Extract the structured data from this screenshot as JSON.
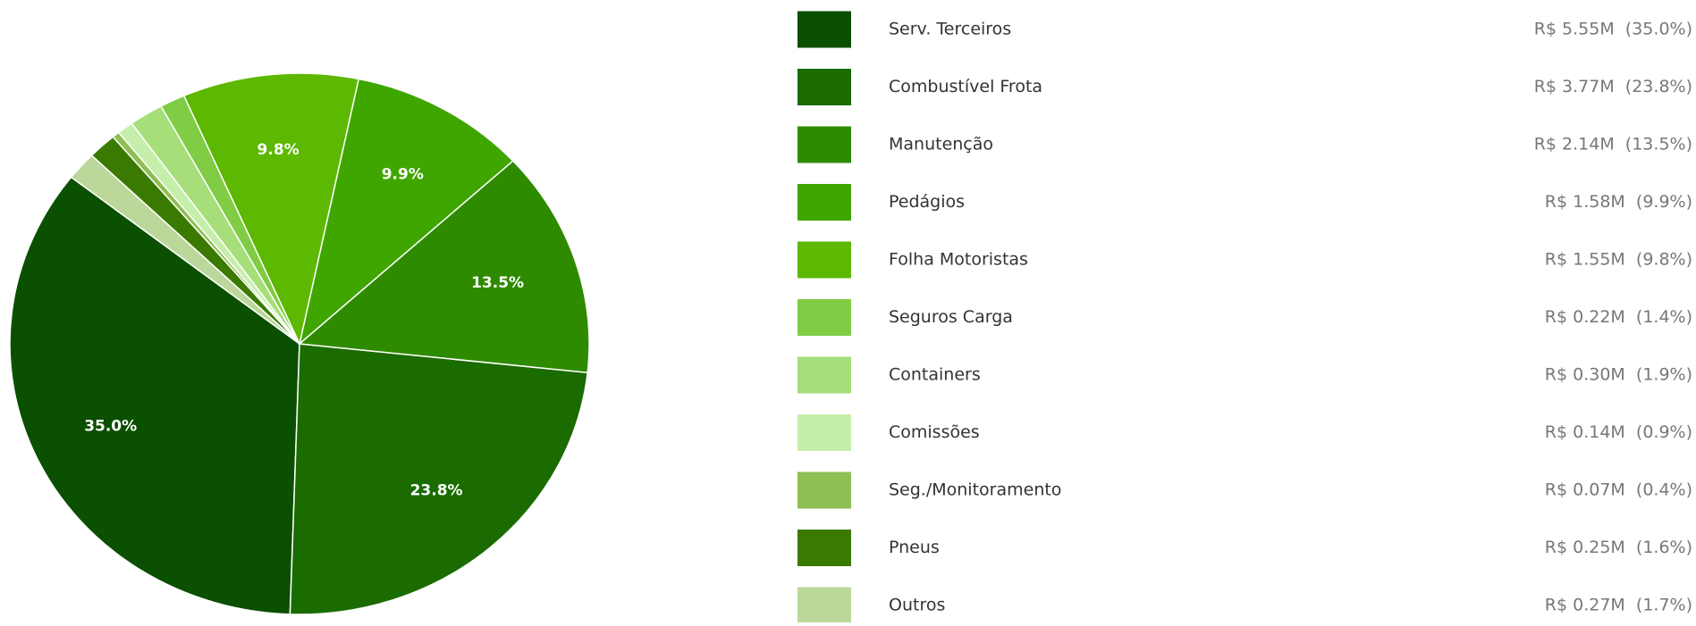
{
  "chart_data": {
    "type": "pie",
    "categories": [
      "Serv. Terceiros",
      "Combustível Frota",
      "Manutenção",
      "Pedágios",
      "Folha Motoristas",
      "Seguros Carga",
      "Containers",
      "Comissões",
      "Seg./Monitoramento",
      "Pneus",
      "Outros"
    ],
    "values": [
      35.0,
      23.8,
      13.5,
      9.9,
      9.8,
      1.4,
      1.9,
      0.9,
      0.4,
      1.6,
      1.7
    ],
    "value_labels": [
      "35.0%",
      "23.8%",
      "13.5%",
      "9.9%",
      "9.8%",
      null,
      null,
      null,
      null,
      null,
      null
    ],
    "legend_values": [
      "R$ 5.55M  (35.0%)",
      "R$ 3.77M  (23.8%)",
      "R$ 2.14M  (13.5%)",
      "R$ 1.58M  (9.9%)",
      "R$ 1.55M  (9.8%)",
      "R$ 0.22M  (1.4%)",
      "R$ 0.30M  (1.9%)",
      "R$ 0.14M  (0.9%)",
      "R$ 0.07M  (0.4%)",
      "R$ 0.25M  (1.6%)",
      "R$ 0.27M  (1.7%)"
    ],
    "colors": [
      "#0b4f00",
      "#1a6b00",
      "#2e8b00",
      "#3fa600",
      "#5cb800",
      "#80cc44",
      "#a6de7a",
      "#c6eeab",
      "#8fbe52",
      "#3a7a00",
      "#bbd89a"
    ],
    "start_angle": 142,
    "counterclock": true
  }
}
